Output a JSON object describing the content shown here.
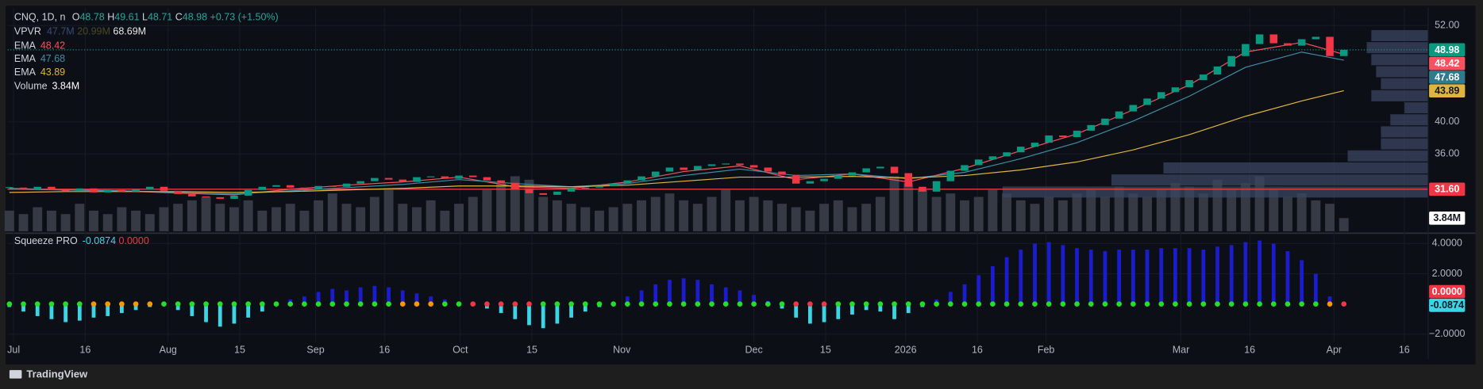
{
  "chart_data": {
    "type": "candlestick",
    "title": "CNQ, 1D, n",
    "ohlc": {
      "labels": [
        "O",
        "H",
        "L",
        "C"
      ],
      "values": [
        48.78,
        49.61,
        48.71,
        48.98
      ]
    },
    "change": "+0.73 (+1.50%)",
    "up_color": "#089981",
    "down_color": "#f23645",
    "xlim": [
      -0.13,
      101.0
    ],
    "xticks": [
      {
        "value": 0.3,
        "label": "Jul"
      },
      {
        "value": 5.4,
        "label": "16"
      },
      {
        "value": 11.3,
        "label": "Aug"
      },
      {
        "value": 16.4,
        "label": "15"
      },
      {
        "value": 21.8,
        "label": "Sep"
      },
      {
        "value": 26.7,
        "label": "16"
      },
      {
        "value": 32.1,
        "label": "Oct"
      },
      {
        "value": 37.2,
        "label": "15"
      },
      {
        "value": 43.6,
        "label": "Nov"
      },
      {
        "value": 53.0,
        "label": "Dec"
      },
      {
        "value": 58.1,
        "label": "15"
      },
      {
        "value": 63.8,
        "label": "2026"
      },
      {
        "value": 68.9,
        "label": "16"
      },
      {
        "value": 73.8,
        "label": "Feb"
      },
      {
        "value": 83.4,
        "label": "Mar"
      },
      {
        "value": 88.3,
        "label": "16"
      },
      {
        "value": 94.3,
        "label": "Apr"
      },
      {
        "value": 99.3,
        "label": "16"
      }
    ],
    "ylim": [
      26.35,
      54.24
    ],
    "yticks": [
      {
        "value": 36,
        "label": "36.00"
      },
      {
        "value": 40,
        "label": "40.00"
      },
      {
        "value": 52,
        "label": "52.00"
      }
    ],
    "grid": true,
    "closes": [
      31.8,
      31.6,
      31.9,
      31.5,
      31.4,
      31.7,
      31.2,
      31.5,
      31.3,
      31.6,
      31.9,
      31.4,
      31.0,
      30.7,
      30.6,
      30.4,
      30.8,
      31.5,
      31.9,
      32.1,
      31.8,
      31.6,
      32.0,
      31.9,
      32.3,
      32.6,
      33.0,
      32.8,
      32.5,
      33.1,
      33.2,
      32.9,
      33.3,
      33.1,
      32.7,
      32.4,
      31.6,
      31.1,
      30.9,
      31.3,
      31.7,
      31.8,
      32.0,
      32.3,
      32.7,
      33.2,
      33.8,
      34.3,
      34.0,
      34.5,
      34.7,
      34.8,
      34.6,
      34.3,
      33.8,
      33.4,
      32.3,
      32.6,
      32.9,
      33.3,
      33.7,
      34.2,
      34.4,
      33.6,
      31.9,
      31.3,
      32.6,
      33.9,
      34.6,
      35.3,
      35.7,
      36.2,
      36.9,
      37.4,
      38.3,
      38.1,
      38.9,
      39.6,
      40.4,
      41.3,
      42.1,
      42.9,
      43.7,
      44.3,
      45.2,
      45.9,
      46.9,
      48.2,
      49.7,
      50.9,
      49.8,
      49.5,
      50.3,
      50.6,
      48.2,
      48.98
    ],
    "ema": {
      "x": [
        0,
        4,
        8,
        12,
        16,
        20,
        24,
        28,
        32,
        36,
        40,
        44,
        48,
        52,
        56,
        60,
        64,
        68,
        72,
        76,
        80,
        84,
        88,
        92,
        95
      ],
      "series": [
        {
          "name": "EMA",
          "color": "#f7525f",
          "values": [
            31.7,
            31.5,
            31.4,
            31.1,
            30.9,
            31.6,
            32.1,
            32.5,
            33.1,
            31.9,
            31.7,
            32.5,
            33.8,
            34.5,
            32.8,
            33.5,
            32.5,
            34.2,
            36.4,
            38.5,
            41.5,
            44.6,
            48.7,
            49.9,
            48.42
          ]
        },
        {
          "name": "EMA",
          "color": "#3d8fa6",
          "values": [
            31.6,
            31.5,
            31.4,
            31.2,
            31.0,
            31.4,
            31.8,
            32.2,
            32.8,
            32.3,
            31.9,
            32.3,
            33.3,
            34.1,
            33.3,
            33.5,
            32.9,
            33.7,
            35.4,
            37.4,
            40.1,
            43.2,
            46.8,
            48.7,
            47.68
          ]
        },
        {
          "name": "EMA",
          "color": "#e0b53f",
          "values": [
            31.2,
            31.3,
            31.3,
            31.3,
            31.2,
            31.3,
            31.5,
            31.7,
            32.0,
            32.0,
            31.9,
            32.1,
            32.6,
            33.1,
            33.1,
            33.2,
            33.0,
            33.3,
            34.0,
            35.0,
            36.5,
            38.4,
            40.7,
            42.6,
            43.89
          ]
        }
      ]
    },
    "volume": {
      "name": "Volume",
      "color": "#363a45",
      "ylim": [
        0,
        65
      ],
      "values": [
        6,
        5,
        7,
        6,
        5,
        8,
        6,
        5,
        7,
        6,
        5,
        7,
        8,
        9,
        10,
        8,
        7,
        9,
        6,
        7,
        8,
        6,
        9,
        11,
        8,
        7,
        10,
        12,
        8,
        7,
        9,
        6,
        8,
        10,
        12,
        14,
        16,
        15,
        10,
        9,
        8,
        7,
        6,
        7,
        8,
        9,
        10,
        11,
        9,
        8,
        10,
        12,
        9,
        10,
        9,
        8,
        7,
        6,
        8,
        9,
        7,
        8,
        10,
        16,
        14,
        12,
        10,
        11,
        9,
        10,
        12,
        11,
        9,
        8,
        10,
        9,
        11,
        12,
        10,
        13,
        11,
        10,
        12,
        14,
        13,
        11,
        15,
        12,
        14,
        16,
        12,
        10,
        11,
        9,
        8,
        3.84
      ],
      "value_labels": [
        null,
        null,
        null,
        null,
        null,
        null,
        null,
        null,
        null,
        null,
        null,
        null,
        null,
        null,
        null,
        null,
        null,
        null,
        null,
        null,
        null,
        null,
        null,
        null,
        null,
        null,
        null,
        null,
        null,
        null,
        null,
        null,
        null,
        null,
        null,
        null,
        null,
        null,
        null,
        null,
        null,
        null,
        null,
        null,
        null,
        null,
        null,
        null,
        null,
        null,
        null,
        null,
        null,
        null,
        null,
        null,
        null,
        null,
        null,
        null,
        null,
        null,
        null,
        null,
        null,
        null,
        null,
        null,
        null,
        null,
        null,
        null,
        null,
        null,
        null,
        null,
        null,
        null,
        null,
        null,
        null,
        null,
        null,
        null,
        null,
        null,
        null,
        null,
        null,
        null,
        null,
        null,
        null,
        null,
        null,
        "3.84M"
      ]
    },
    "vpvr": {
      "name": "VPVR",
      "stats": [
        "47.7M",
        "20.99M",
        "68.69M"
      ],
      "color": "#3a4560",
      "bins": [
        30.5,
        32,
        33.5,
        35,
        36.5,
        38,
        39.5,
        41,
        42.5,
        44,
        45.5,
        47,
        48.5,
        50,
        51.5
      ],
      "volumes": [
        18.57,
        13.82,
        11.55,
        3.51,
        2.06,
        2.06,
        1.65,
        1.03,
        2.48,
        2.06,
        2.27,
        2.48,
        2.68,
        2.48
      ]
    },
    "poc": {
      "value": 31.6,
      "label": "31.60",
      "color": "#f23645"
    },
    "squeeze": {
      "name": "Squeeze PRO",
      "up_color": "#1c1ccf",
      "down_color": "#3bd6e6",
      "ylim": [
        -2.5,
        4.5
      ],
      "yticks": [
        {
          "value": 4,
          "label": "4.0000"
        },
        {
          "value": 2,
          "label": "2.0000"
        },
        {
          "value": -2,
          "label": "−2.0000"
        }
      ],
      "zero_line": {
        "value": 0,
        "label": "0.0000",
        "color": "#f23645"
      },
      "values": [
        -0.2,
        -0.5,
        -0.8,
        -1.0,
        -1.2,
        -1.1,
        -0.9,
        -0.8,
        -0.6,
        -0.4,
        -0.2,
        -0.1,
        -0.4,
        -0.8,
        -1.2,
        -1.5,
        -1.3,
        -0.9,
        -0.5,
        -0.1,
        0.3,
        0.5,
        0.8,
        1.0,
        0.9,
        1.1,
        1.2,
        1.1,
        0.9,
        0.7,
        0.5,
        0.3,
        0.1,
        -0.1,
        -0.3,
        -0.6,
        -1.0,
        -1.4,
        -1.6,
        -1.3,
        -0.9,
        -0.5,
        -0.2,
        0.1,
        0.5,
        0.9,
        1.3,
        1.6,
        1.7,
        1.6,
        1.3,
        1.1,
        0.9,
        0.6,
        0.2,
        -0.3,
        -0.9,
        -1.3,
        -1.2,
        -1.0,
        -0.7,
        -0.4,
        -0.5,
        -1.0,
        -0.6,
        -0.2,
        0.3,
        0.8,
        1.3,
        1.9,
        2.5,
        3.1,
        3.6,
        4.0,
        4.1,
        3.9,
        3.7,
        3.6,
        3.5,
        3.6,
        3.6,
        3.6,
        3.7,
        3.7,
        3.7,
        3.6,
        3.8,
        3.9,
        4.1,
        4.2,
        4.0,
        3.5,
        2.9,
        2.0,
        0.5,
        -0.0874
      ],
      "dot_color": "#22e02a",
      "dot_runs": [
        {
          "start": 6,
          "end": 10,
          "color": "#ff9800"
        },
        {
          "start": 28,
          "end": 30,
          "color": "#ff9800"
        },
        {
          "start": 33,
          "end": 37,
          "color": "#f23645"
        },
        {
          "start": 56,
          "end": 58,
          "color": "#f23645"
        },
        {
          "start": 94,
          "end": 94,
          "color": "#ff9800"
        },
        {
          "start": 95,
          "end": 95,
          "color": "#f23645"
        }
      ]
    }
  },
  "footer": {
    "brand": "TradingView"
  }
}
